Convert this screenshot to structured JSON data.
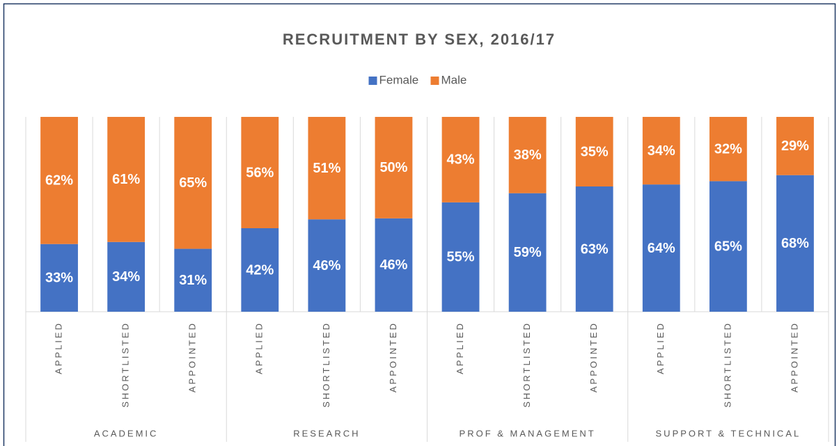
{
  "chart_data": {
    "type": "bar",
    "stacking": "percent",
    "title": "RECRUITMENT BY SEX, 2016/17",
    "groups": [
      {
        "label": "ACADEMIC",
        "categories": [
          "APPLIED",
          "SHORTLISTED",
          "APPOINTED"
        ]
      },
      {
        "label": "RESEARCH",
        "categories": [
          "APPLIED",
          "SHORTLISTED",
          "APPOINTED"
        ]
      },
      {
        "label": "PROF & MANAGEMENT",
        "categories": [
          "APPLIED",
          "SHORTLISTED",
          "APPOINTED"
        ]
      },
      {
        "label": "SUPPORT & TECHNICAL",
        "categories": [
          "APPLIED",
          "SHORTLISTED",
          "APPOINTED"
        ]
      }
    ],
    "series": [
      {
        "name": "Female",
        "color": "#4472c4",
        "values": [
          33,
          34,
          31,
          42,
          46,
          46,
          55,
          59,
          63,
          64,
          65,
          68
        ],
        "value_labels": [
          "33%",
          "34%",
          "31%",
          "42%",
          "46%",
          "46%",
          "55%",
          "59%",
          "63%",
          "64%",
          "65%",
          "68%"
        ]
      },
      {
        "name": "Male",
        "color": "#ed7d31",
        "values": [
          62,
          61,
          65,
          56,
          51,
          50,
          43,
          38,
          35,
          34,
          32,
          29
        ],
        "value_labels": [
          "62%",
          "61%",
          "65%",
          "56%",
          "51%",
          "50%",
          "43%",
          "38%",
          "35%",
          "34%",
          "32%",
          "29%"
        ]
      }
    ],
    "legend": "top"
  }
}
